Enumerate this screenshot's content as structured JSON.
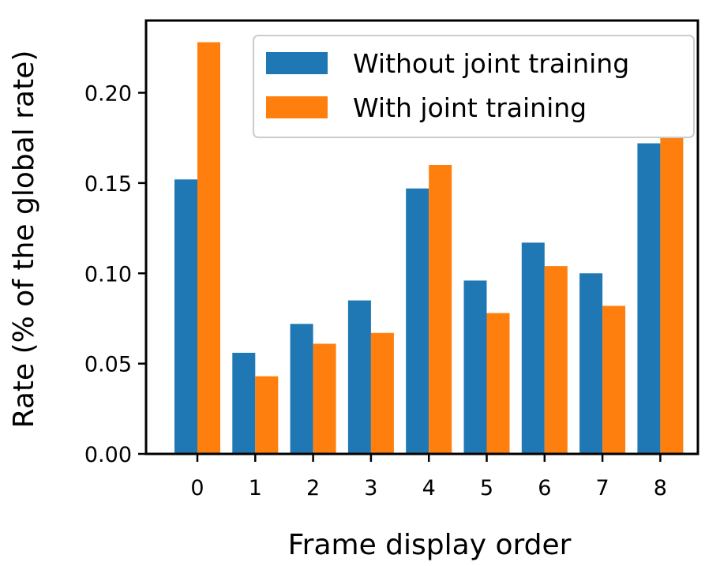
{
  "chart_data": {
    "type": "bar",
    "xlabel": "Frame display order",
    "ylabel": "Rate (% of the global rate)",
    "categories": [
      "0",
      "1",
      "2",
      "3",
      "4",
      "5",
      "6",
      "7",
      "8"
    ],
    "y_ticks": [
      "0.00",
      "0.05",
      "0.10",
      "0.15",
      "0.20"
    ],
    "ylim": [
      0,
      0.24
    ],
    "legend_position": "top-right",
    "grid": false,
    "series": [
      {
        "name": "Without joint training",
        "color": "#1f77b4",
        "values": [
          0.152,
          0.056,
          0.072,
          0.085,
          0.147,
          0.096,
          0.117,
          0.1,
          0.172
        ]
      },
      {
        "name": "With joint training",
        "color": "#ff7f0e",
        "values": [
          0.228,
          0.043,
          0.061,
          0.067,
          0.16,
          0.078,
          0.104,
          0.082,
          0.175
        ]
      }
    ]
  }
}
